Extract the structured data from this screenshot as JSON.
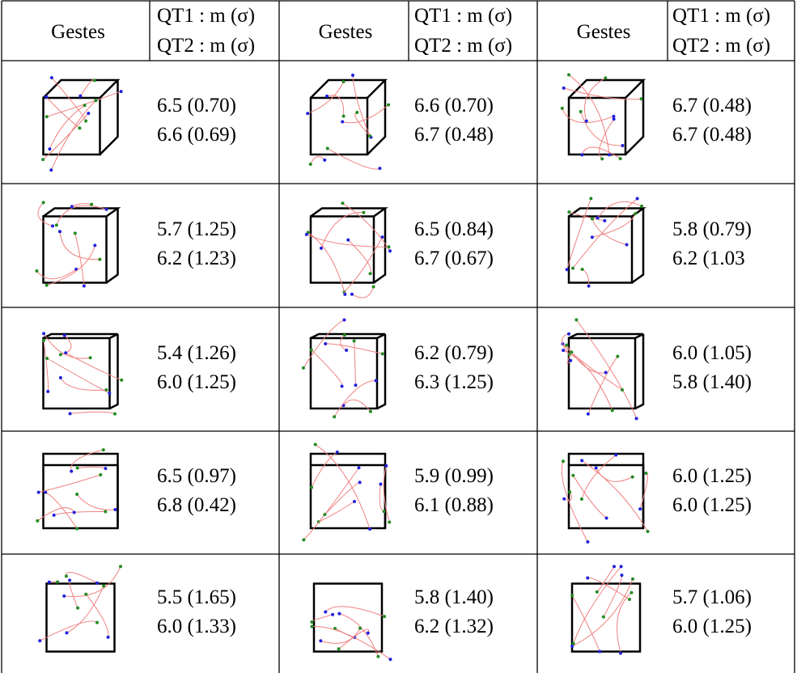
{
  "table": {
    "header": [
      {
        "gestures": "Gestes",
        "qt1": "QT1 : m (σ)",
        "qt2": "QT2 : m (σ)"
      },
      {
        "gestures": "Gestes",
        "qt1": "QT1 : m (σ)",
        "qt2": "QT2 : m (σ)"
      },
      {
        "gestures": "Gestes",
        "qt1": "QT1 : m (σ)",
        "qt2": "QT2 : m (σ)"
      }
    ],
    "rows": [
      [
        {
          "qt1": "6.5 (0.70)",
          "qt2": "6.6 (0.69)"
        },
        {
          "qt1": "6.6 (0.70)",
          "qt2": "6.7 (0.48)"
        },
        {
          "qt1": "6.7 (0.48)",
          "qt2": "6.7 (0.48)"
        }
      ],
      [
        {
          "qt1": "5.7 (1.25)",
          "qt2": "6.2 (1.23)"
        },
        {
          "qt1": "6.5 (0.84)",
          "qt2": "6.7 (0.67)"
        },
        {
          "qt1": "5.8 (0.79)",
          "qt2": "6.2 (1.03"
        }
      ],
      [
        {
          "qt1": "5.4 (1.26)",
          "qt2": "6.0 (1.25)"
        },
        {
          "qt1": "6.2 (0.79)",
          "qt2": "6.3 (1.25)"
        },
        {
          "qt1": "6.0 (1.05)",
          "qt2": "5.8 (1.40)"
        }
      ],
      [
        {
          "qt1": "6.5 (0.97)",
          "qt2": "6.8 (0.42)"
        },
        {
          "qt1": "5.9 (0.99)",
          "qt2": "6.1 (0.88)"
        },
        {
          "qt1": "6.0 (1.25)",
          "qt2": "6.0 (1.25)"
        }
      ],
      [
        {
          "qt1": "5.5 (1.65)",
          "qt2": "6.0 (1.33)"
        },
        {
          "qt1": "5.8 (1.40)",
          "qt2": "6.2 (1.32)"
        },
        {
          "qt1": "5.7 (1.06)",
          "qt2": "6.0 (1.25)"
        }
      ]
    ]
  }
}
